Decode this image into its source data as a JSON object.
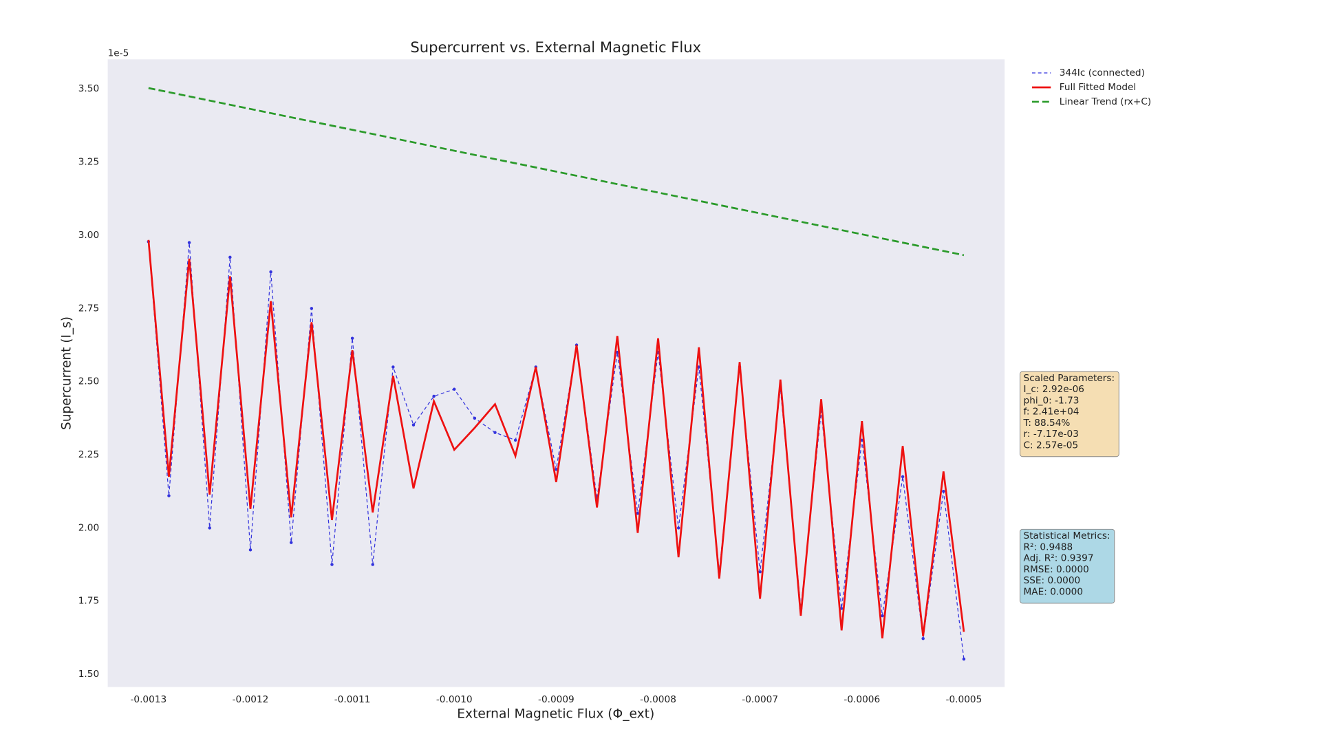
{
  "chart_data": {
    "type": "line",
    "title": "Supercurrent vs. External Magnetic Flux",
    "x_label": "External Magnetic Flux (Φ_ext)",
    "y_label": "Supercurrent (I_s)",
    "y_offset_label": "1e-5",
    "xlim": [
      -0.00134,
      -0.00046
    ],
    "ylim": [
      1.4565,
      3.601
    ],
    "xticks": [
      -0.0013,
      -0.0012,
      -0.0011,
      {
        "value": -0.001,
        "label": "-0.0010"
      },
      -0.0009,
      -0.0008,
      -0.0007,
      -0.0006,
      -0.0005
    ],
    "yticks": [
      {
        "value": 1.5,
        "label": "1.50"
      },
      {
        "value": 1.75,
        "label": "1.75"
      },
      {
        "value": 2,
        "label": "2.00"
      },
      {
        "value": 2.25,
        "label": "2.25"
      },
      {
        "value": 2.5,
        "label": "2.50"
      },
      {
        "value": 2.75,
        "label": "2.75"
      },
      {
        "value": 3,
        "label": "3.00"
      },
      {
        "value": 3.25,
        "label": "3.25"
      },
      {
        "value": 3.5,
        "label": "3.50"
      }
    ],
    "grid": false,
    "legend": "outside upper right",
    "x": [
      -0.0013,
      -0.00128,
      -0.00126,
      -0.00124,
      -0.00122,
      -0.0012,
      -0.00118,
      -0.00116,
      -0.00114,
      -0.00112,
      -0.0011,
      -0.00108,
      -0.00106,
      -0.00104,
      -0.00102,
      -0.001,
      -0.00098,
      -0.00096,
      -0.00094,
      -0.00092,
      -0.0009,
      -0.00088,
      -0.00086,
      -0.00084,
      -0.00082,
      -0.0008,
      -0.00078,
      -0.00076,
      -0.00074,
      -0.00072,
      -0.0007,
      -0.00068,
      -0.00066,
      -0.00064,
      -0.00062,
      -0.0006,
      -0.00058,
      -0.00056,
      -0.00054,
      -0.00052,
      -0.0005
    ],
    "series": [
      {
        "name": "344Ic (connected)",
        "color": "#3333dd",
        "style": "dashed-markers",
        "values": [
          2.978,
          2.11,
          2.975,
          2.0,
          2.925,
          1.925,
          2.875,
          1.95,
          2.75,
          1.875,
          2.648,
          1.875,
          2.55,
          2.352,
          2.45,
          2.474,
          2.375,
          2.326,
          2.3,
          2.55,
          2.2,
          2.625,
          2.1,
          2.6,
          2.05,
          2.6,
          2.0,
          2.55,
          1.85,
          2.55,
          1.85,
          2.477,
          1.725,
          2.4,
          1.725,
          2.3,
          1.7,
          2.175,
          1.622,
          2.125,
          1.552
        ]
      },
      {
        "name": "Full Fitted Model",
        "color": "#ee1111",
        "style": "solid",
        "values": [
          2.984,
          2.175,
          2.92,
          2.114,
          2.86,
          2.065,
          2.775,
          2.036,
          2.703,
          2.027,
          2.607,
          2.053,
          2.52,
          2.135,
          2.433,
          2.267,
          2.342,
          2.423,
          2.246,
          2.55,
          2.157,
          2.625,
          2.07,
          2.656,
          1.983,
          2.648,
          1.9,
          2.617,
          1.827,
          2.567,
          1.758,
          2.507,
          1.7,
          2.44,
          1.65,
          2.365,
          1.623,
          2.28,
          1.63,
          2.193,
          1.645
        ]
      },
      {
        "name": "Linear Trend (rx+C)",
        "color": "#2a9a2a",
        "style": "dashed",
        "x": [
          -0.0013,
          -0.0005
        ],
        "values": [
          3.503,
          2.932
        ]
      }
    ],
    "annotations": [
      {
        "title": "Scaled Parameters:",
        "lines": [
          "I_c: 2.92e-06",
          "phi_0: -1.73",
          "f: 2.41e+04",
          "T: 88.54%",
          "r: -7.17e-03",
          "C: 2.57e-05"
        ],
        "color": "#f5deb3"
      },
      {
        "title": "Statistical Metrics:",
        "lines": [
          "R²: 0.9488",
          "Adj. R²: 0.9397",
          "RMSE: 0.0000",
          "SSE: 0.0000",
          "MAE: 0.0000"
        ],
        "color": "#add8e6"
      }
    ]
  }
}
